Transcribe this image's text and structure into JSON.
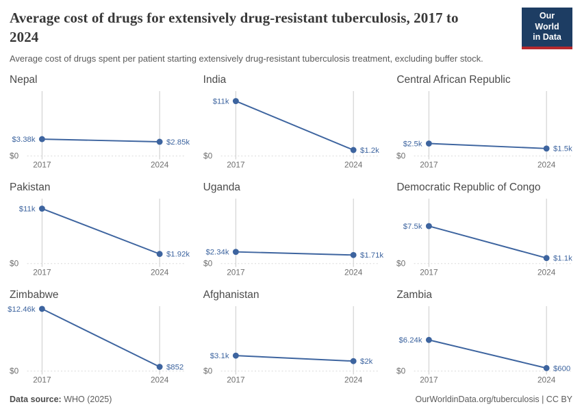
{
  "header": {
    "title": "Average cost of drugs for extensively drug-resistant tuberculosis, 2017 to 2024",
    "subtitle": "Average cost of drugs spent per patient starting extensively drug-resistant tuberculosis treatment, excluding buffer stock.",
    "logo_line1": "Our World",
    "logo_line2": "in Data",
    "logo_bg_color": "#1d3d63",
    "logo_accent_color": "#b5292e"
  },
  "footer": {
    "datasource_label": "Data source:",
    "datasource_value": "WHO (2025)",
    "attribution": "OurWorldinData.org/tuberculosis | CC BY"
  },
  "chart_data": {
    "type": "line",
    "layout": "3x3 small multiples, shared y scale",
    "x": [
      2017,
      2024
    ],
    "x_tick_labels": [
      "2017",
      "2024"
    ],
    "y_zero_label": "$0",
    "ylim": [
      0,
      13000
    ],
    "grid": "zero-baseline dotted, vertical axis lines at each year",
    "line_color": "#3d649f",
    "facets": [
      {
        "title": "Nepal",
        "values": [
          3380,
          2850
        ],
        "point_labels": [
          "$3.38k",
          "$2.85k"
        ]
      },
      {
        "title": "India",
        "values": [
          11000,
          1200
        ],
        "point_labels": [
          "$11k",
          "$1.2k"
        ]
      },
      {
        "title": "Central African Republic",
        "values": [
          2500,
          1500
        ],
        "point_labels": [
          "$2.5k",
          "$1.5k"
        ]
      },
      {
        "title": "Pakistan",
        "values": [
          11000,
          1920
        ],
        "point_labels": [
          "$11k",
          "$1.92k"
        ]
      },
      {
        "title": "Uganda",
        "values": [
          2340,
          1710
        ],
        "point_labels": [
          "$2.34k",
          "$1.71k"
        ]
      },
      {
        "title": "Democratic Republic of Congo",
        "values": [
          7500,
          1100
        ],
        "point_labels": [
          "$7.5k",
          "$1.1k"
        ]
      },
      {
        "title": "Zimbabwe",
        "values": [
          12460,
          852
        ],
        "point_labels": [
          "$12.46k",
          "$852"
        ]
      },
      {
        "title": "Afghanistan",
        "values": [
          3100,
          2000
        ],
        "point_labels": [
          "$3.1k",
          "$2k"
        ]
      },
      {
        "title": "Zambia",
        "values": [
          6240,
          600
        ],
        "point_labels": [
          "$6.24k",
          "$600"
        ]
      }
    ]
  }
}
